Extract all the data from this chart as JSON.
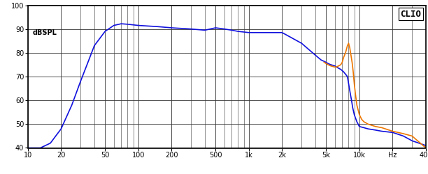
{
  "title": "CLIO",
  "ylabel": "dBSPL",
  "xlabel": "Hz",
  "xmin": 10,
  "xmax": 40000,
  "ymin": 40,
  "ymax": 100,
  "yticks": [
    40,
    50,
    60,
    70,
    80,
    90,
    100
  ],
  "xtick_labels": [
    "10",
    "20",
    "50",
    "100",
    "200",
    "500",
    "1k",
    "2k",
    "5k",
    "10k",
    "Hz",
    "40k"
  ],
  "xtick_values": [
    10,
    20,
    50,
    100,
    200,
    500,
    1000,
    2000,
    5000,
    10000,
    20000,
    40000
  ],
  "blue_color": "#1010dd",
  "orange_color": "#ee7700",
  "background_color": "#ffffff",
  "grid_color": "#333333",
  "line_width": 1.2,
  "blue_x": [
    10,
    13,
    16,
    20,
    25,
    30,
    35,
    40,
    50,
    60,
    70,
    80,
    100,
    150,
    200,
    300,
    400,
    500,
    600,
    700,
    800,
    1000,
    1500,
    2000,
    3000,
    4000,
    4500,
    5000,
    5200,
    5500,
    6000,
    6200,
    6500,
    6800,
    7000,
    7200,
    7500,
    7800,
    8000,
    8200,
    8500,
    8700,
    9000,
    9500,
    10000,
    11000,
    12000,
    14000,
    16000,
    20000,
    25000,
    30000,
    40000
  ],
  "blue_y": [
    40,
    40,
    42,
    48,
    58,
    68,
    76,
    83,
    89,
    91.5,
    92.2,
    92.0,
    91.5,
    91.0,
    90.5,
    90.0,
    89.5,
    90.5,
    90.0,
    89.5,
    89.0,
    88.5,
    88.5,
    88.5,
    84.0,
    79.0,
    77.0,
    76.0,
    75.5,
    75.0,
    74.5,
    74.0,
    73.5,
    73.0,
    72.5,
    72.0,
    71.0,
    70.0,
    67.0,
    64.0,
    60.0,
    57.0,
    54.0,
    51.0,
    49.0,
    48.5,
    48.0,
    47.5,
    47.0,
    46.5,
    45.0,
    43.0,
    41.0
  ],
  "orange_x": [
    4800,
    5000,
    5200,
    5500,
    6000,
    6200,
    6500,
    6800,
    7000,
    7200,
    7500,
    7800,
    8000,
    8200,
    8400,
    8600,
    8800,
    9000,
    9200,
    9500,
    10000,
    10500,
    11000,
    12000,
    14000,
    16000,
    20000,
    25000,
    30000,
    40000
  ],
  "orange_y": [
    76.0,
    75.5,
    75.0,
    74.5,
    74.0,
    74.0,
    74.5,
    75.0,
    76.0,
    78.0,
    80.0,
    83.0,
    84.0,
    82.0,
    79.0,
    76.0,
    72.0,
    67.0,
    63.0,
    58.0,
    54.0,
    52.0,
    51.0,
    50.0,
    49.0,
    48.5,
    47.0,
    46.0,
    45.0,
    40.0
  ]
}
